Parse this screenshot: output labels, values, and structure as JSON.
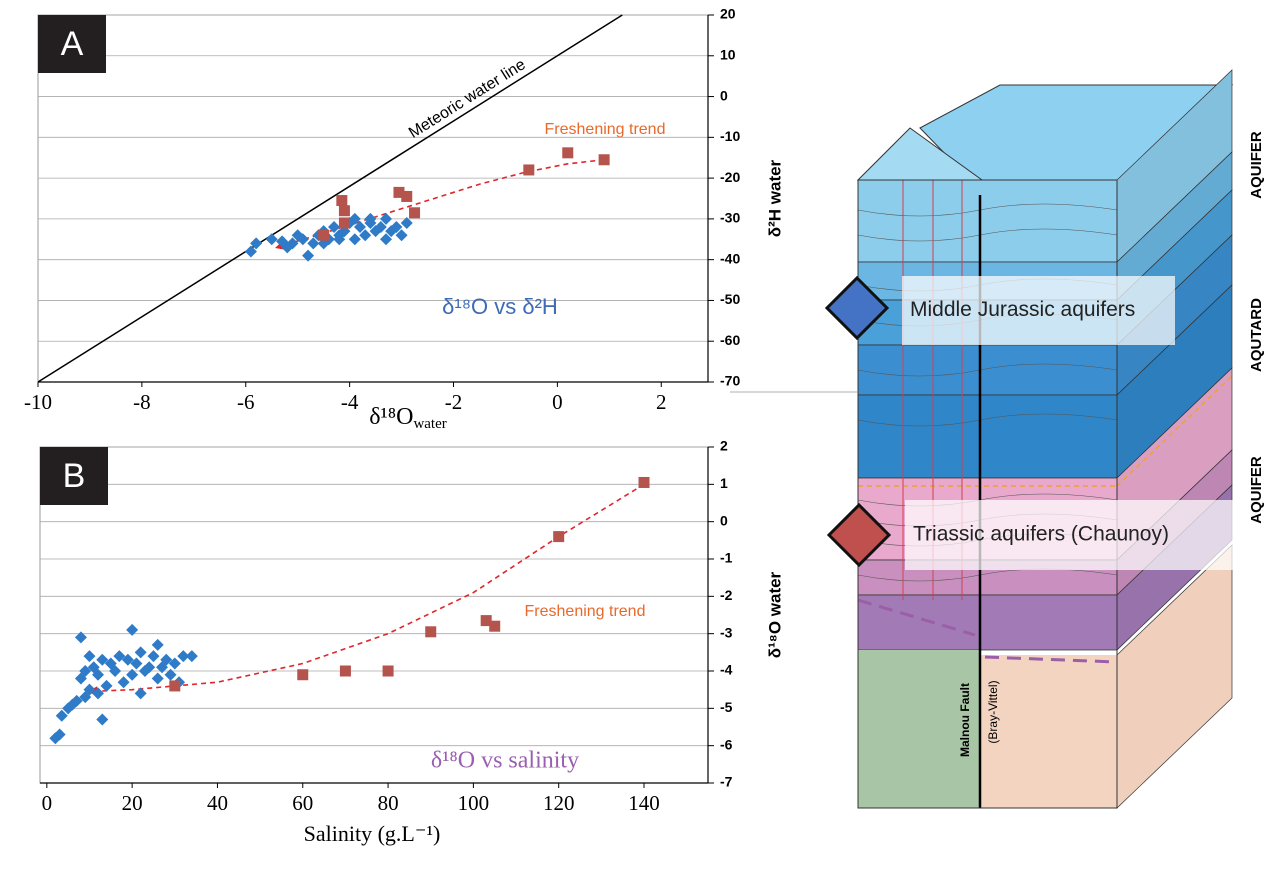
{
  "chart_data": [
    {
      "type": "scatter",
      "panel": "A",
      "x_label": {
        "text": "δ¹⁸O",
        "sub": "water"
      },
      "y_label": "δ²H water",
      "xlim": [
        -10,
        2.9
      ],
      "ylim": [
        -70,
        20
      ],
      "xticks": [
        -10,
        -8,
        -6,
        -4,
        -2,
        0,
        2
      ],
      "yticks": [
        -70,
        -60,
        -50,
        -40,
        -30,
        -20,
        -10,
        0,
        10,
        20
      ],
      "grid": true,
      "annotations": [
        "Freshening trend",
        "δ¹⁸O vs δ²H"
      ],
      "series": [
        {
          "name": "Meteoric water line",
          "style": "line",
          "color": "#000000",
          "x": [
            -10,
            1.25
          ],
          "values": [
            -70,
            20
          ]
        },
        {
          "style": "dashed",
          "color": "#e0262b",
          "x": [
            0.9,
            0.2,
            -0.6,
            -1.5,
            -2.5,
            -3.5,
            -4.5,
            -5.4
          ],
          "values": [
            -15.5,
            -16.5,
            -18.5,
            -21.5,
            -25.5,
            -29.5,
            -33.5,
            -37
          ]
        },
        {
          "style": "diamond",
          "color": "#2f7bc8",
          "x": [
            -5.9,
            -5.8,
            -5.5,
            -5.3,
            -5.1,
            -5,
            -4.9,
            -4.8,
            -4.7,
            -4.6,
            -4.5,
            -4.4,
            -4.3,
            -4.2,
            -4.1,
            -4,
            -3.9,
            -3.8,
            -3.7,
            -3.6,
            -3.5,
            -3.4,
            -3.3,
            -3.2,
            -3.1,
            -3,
            -2.9,
            -4.5,
            -3.9,
            -3.6,
            -4.2,
            -5.2,
            -3.3
          ],
          "values": [
            -38,
            -36,
            -35,
            -35.5,
            -36,
            -34,
            -35,
            -39,
            -36,
            -34,
            -33,
            -35,
            -32,
            -34,
            -33,
            -31,
            -35,
            -32,
            -34,
            -31,
            -33,
            -32,
            -35,
            -33,
            -32,
            -34,
            -31,
            -36,
            -30,
            -30,
            -35,
            -37,
            -30
          ]
        },
        {
          "style": "square",
          "color": "#b5534d",
          "x": [
            -0.55,
            0.2,
            0.9,
            -3.05,
            -2.9,
            -2.75,
            -4.15,
            -4.1,
            -4.1,
            -4.5
          ],
          "values": [
            -18,
            -13.8,
            -15.5,
            -23.5,
            -24.5,
            -28.5,
            -25.5,
            -28,
            -31,
            -34
          ]
        }
      ]
    },
    {
      "type": "scatter",
      "panel": "B",
      "x_label": "Salinity (g.L⁻¹)",
      "y_label": "δ¹⁸O water",
      "xlim": [
        -1.6,
        155
      ],
      "ylim": [
        -7,
        2
      ],
      "xticks": [
        0,
        20,
        40,
        60,
        80,
        100,
        120,
        140
      ],
      "yticks": [
        -7,
        -6,
        -5,
        -4,
        -3,
        -2,
        -1,
        0,
        1,
        2
      ],
      "grid": true,
      "annotations": [
        "Freshening trend",
        "δ¹⁸O vs salinity"
      ],
      "series": [
        {
          "style": "dashed",
          "color": "#e0262b",
          "x": [
            140,
            120,
            100,
            80,
            60,
            40,
            20,
            10
          ],
          "values": [
            1,
            -0.4,
            -1.9,
            -3,
            -3.8,
            -4.3,
            -4.5,
            -4.55
          ]
        },
        {
          "style": "diamond",
          "color": "#2f7bc8",
          "x": [
            2,
            3,
            3.5,
            5,
            6,
            7,
            8,
            8,
            9,
            9,
            10,
            10,
            11,
            12,
            13,
            13,
            14,
            15,
            16,
            17,
            18,
            19,
            20,
            20,
            21,
            22,
            22,
            23,
            24,
            25,
            26,
            26,
            27,
            28,
            29,
            30,
            31,
            32,
            34,
            12
          ],
          "values": [
            -5.8,
            -5.7,
            -5.2,
            -5,
            -4.9,
            -4.8,
            -3.1,
            -4.2,
            -4,
            -4.7,
            -3.6,
            -4.5,
            -3.9,
            -4.1,
            -5.3,
            -3.7,
            -4.4,
            -3.8,
            -4,
            -3.6,
            -4.3,
            -3.7,
            -2.9,
            -4.1,
            -3.8,
            -4.6,
            -3.5,
            -4,
            -3.9,
            -3.6,
            -3.3,
            -4.2,
            -3.9,
            -3.7,
            -4.1,
            -3.8,
            -4.3,
            -3.6,
            -3.6,
            -4.6
          ]
        },
        {
          "style": "square",
          "color": "#b5534d",
          "x": [
            140,
            120,
            103,
            105,
            90,
            80,
            70,
            60,
            30
          ],
          "values": [
            1.05,
            -0.4,
            -2.65,
            -2.8,
            -2.95,
            -4,
            -4,
            -4.1,
            -4.4
          ]
        }
      ]
    }
  ],
  "diagram": {
    "legend": [
      {
        "label": "Middle Jurassic aquifers",
        "color": "#4472c4"
      },
      {
        "label": "Triassic aquifers (Chaunoy)",
        "color": "#c0504d"
      }
    ],
    "zones": [
      "AQUIFER",
      "AQUTARD",
      "AQUIFER"
    ],
    "fault": "Malnou Fault",
    "fault_note": "(Bray-Vittel)"
  }
}
